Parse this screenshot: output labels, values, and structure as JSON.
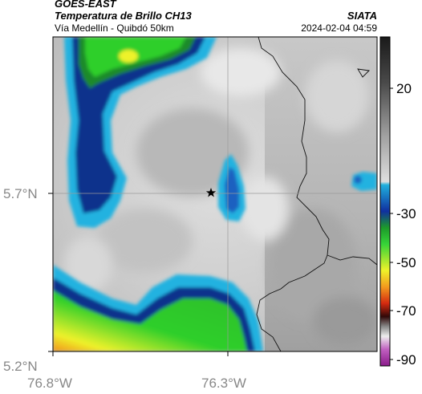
{
  "header": {
    "satellite": "GOES-EAST",
    "product": "Temperatura de Brillo CH13",
    "location": "Vía Medellín - Quibdó 50km",
    "organization": "SIATA",
    "timestamp": "2024-02-04 04:59"
  },
  "axes": {
    "lat_ticks": [
      {
        "label": "5.7°N",
        "value": 5.7
      },
      {
        "label": "5.2°N",
        "value": 5.2
      }
    ],
    "lon_ticks": [
      {
        "label": "76.8°W",
        "value": -76.8
      },
      {
        "label": "76.3°W",
        "value": -76.3
      }
    ]
  },
  "colorbar": {
    "ticks": [
      {
        "label": "20",
        "value": 20
      },
      {
        "label": "-30",
        "value": -30
      },
      {
        "label": "-50",
        "value": -50
      },
      {
        "label": "-70",
        "value": -70
      },
      {
        "label": "-90",
        "value": -90
      }
    ],
    "range": [
      -95,
      35
    ]
  },
  "marker": {
    "name": "star-marker",
    "lat": 5.7,
    "lon": -76.35
  },
  "colors": {
    "gridline": "#9a9a9a",
    "border": "#000000",
    "deep_blue": "#10308c",
    "cyan": "#22b2e0",
    "green": "#2ecf2a",
    "yellow": "#eef22a",
    "orange": "#f2901a"
  }
}
